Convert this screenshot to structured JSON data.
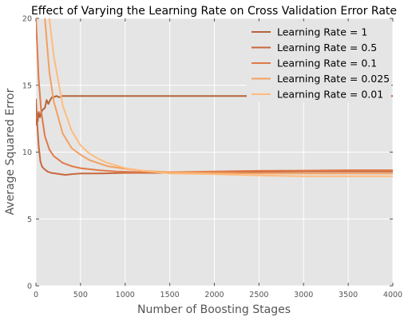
{
  "chart_data": {
    "type": "line",
    "title": "Effect of Varying the Learning Rate on Cross Validation Error Rate",
    "xlabel": "Number of Boosting Stages",
    "ylabel": "Average Squared Error",
    "xlim": [
      0,
      4000
    ],
    "ylim": [
      0,
      20
    ],
    "xticks": [
      "0",
      "500",
      "1000",
      "1500",
      "2000",
      "2500",
      "3000",
      "3500",
      "4000"
    ],
    "yticks": [
      "0",
      "5",
      "10",
      "15",
      "20"
    ],
    "grid": true,
    "legend_position": "top-right",
    "background": "#e5e5e5",
    "series": [
      {
        "name": "Learning Rate = 1",
        "color": "#b5643a",
        "points": [
          [
            0,
            12.0
          ],
          [
            10,
            12.5
          ],
          [
            20,
            12.3
          ],
          [
            30,
            13.0
          ],
          [
            45,
            12.6
          ],
          [
            60,
            13.0
          ],
          [
            80,
            13.2
          ],
          [
            100,
            13.3
          ],
          [
            120,
            13.9
          ],
          [
            140,
            13.6
          ],
          [
            160,
            13.9
          ],
          [
            180,
            14.1
          ],
          [
            200,
            14.1
          ],
          [
            230,
            14.2
          ],
          [
            260,
            14.1
          ],
          [
            300,
            14.2
          ],
          [
            400,
            14.2
          ],
          [
            600,
            14.2
          ],
          [
            1000,
            14.2
          ],
          [
            2000,
            14.2
          ],
          [
            3000,
            14.2
          ],
          [
            3500,
            14.2
          ],
          [
            4000,
            14.2
          ]
        ]
      },
      {
        "name": "Learning Rate = 0.5",
        "color": "#c8683c",
        "points": [
          [
            0,
            14.0
          ],
          [
            15,
            12.0
          ],
          [
            30,
            10.5
          ],
          [
            50,
            9.3
          ],
          [
            70,
            8.9
          ],
          [
            100,
            8.7
          ],
          [
            130,
            8.55
          ],
          [
            170,
            8.45
          ],
          [
            220,
            8.4
          ],
          [
            270,
            8.35
          ],
          [
            330,
            8.3
          ],
          [
            400,
            8.35
          ],
          [
            500,
            8.4
          ],
          [
            700,
            8.4
          ],
          [
            1000,
            8.45
          ],
          [
            1500,
            8.45
          ],
          [
            2000,
            8.5
          ],
          [
            3000,
            8.55
          ],
          [
            4000,
            8.55
          ]
        ]
      },
      {
        "name": "Learning Rate = 0.1",
        "color": "#e07a48",
        "points": [
          [
            0,
            20.0
          ],
          [
            30,
            15.5
          ],
          [
            60,
            13.0
          ],
          [
            100,
            11.2
          ],
          [
            150,
            10.2
          ],
          [
            200,
            9.7
          ],
          [
            300,
            9.2
          ],
          [
            400,
            8.95
          ],
          [
            500,
            8.8
          ],
          [
            700,
            8.65
          ],
          [
            900,
            8.55
          ],
          [
            1200,
            8.5
          ],
          [
            1500,
            8.5
          ],
          [
            2000,
            8.55
          ],
          [
            2500,
            8.6
          ],
          [
            3000,
            8.62
          ],
          [
            3500,
            8.65
          ],
          [
            4000,
            8.65
          ]
        ]
      },
      {
        "name": "Learning Rate = 0.025",
        "color": "#f2a060",
        "points": [
          [
            0,
            26.0
          ],
          [
            100,
            20.0
          ],
          [
            150,
            16.0
          ],
          [
            200,
            13.8
          ],
          [
            300,
            11.4
          ],
          [
            400,
            10.3
          ],
          [
            500,
            9.8
          ],
          [
            600,
            9.4
          ],
          [
            800,
            8.95
          ],
          [
            1000,
            8.75
          ],
          [
            1200,
            8.6
          ],
          [
            1500,
            8.5
          ],
          [
            2000,
            8.45
          ],
          [
            2500,
            8.4
          ],
          [
            3000,
            8.4
          ],
          [
            3500,
            8.4
          ],
          [
            4000,
            8.4
          ]
        ]
      },
      {
        "name": "Learning Rate = 0.01",
        "color": "#ffbb7d",
        "points": [
          [
            130,
            26.0
          ],
          [
            150,
            20.0
          ],
          [
            200,
            17.2
          ],
          [
            300,
            13.5
          ],
          [
            400,
            11.6
          ],
          [
            500,
            10.5
          ],
          [
            600,
            9.9
          ],
          [
            700,
            9.5
          ],
          [
            800,
            9.2
          ],
          [
            1000,
            8.8
          ],
          [
            1200,
            8.6
          ],
          [
            1500,
            8.4
          ],
          [
            2000,
            8.35
          ],
          [
            2500,
            8.25
          ],
          [
            3000,
            8.2
          ],
          [
            3500,
            8.2
          ],
          [
            4000,
            8.2
          ]
        ]
      }
    ]
  }
}
